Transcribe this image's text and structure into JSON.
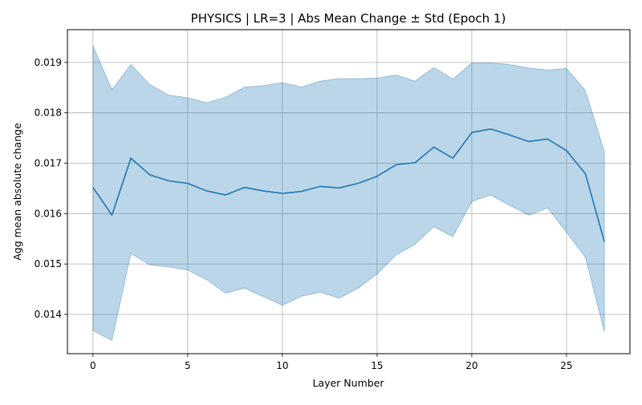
{
  "chart_data": {
    "type": "area",
    "title": "PHYSICS | LR=3 | Abs Mean Change ± Std (Epoch 1)",
    "xlabel": "Layer Number",
    "ylabel": "Agg mean absolute change",
    "xlim": [
      -1.35,
      28.35
    ],
    "ylim": [
      0.01322,
      0.01965
    ],
    "xticks": [
      0,
      5,
      10,
      15,
      20,
      25
    ],
    "yticks": [
      0.014,
      0.015,
      0.016,
      0.017,
      0.018,
      0.019
    ],
    "grid": true,
    "colors": {
      "line": "#1f77b4",
      "band": "#1f77b4",
      "grid": "#b0b0b0",
      "axis": "#000000"
    },
    "x": [
      0,
      1,
      2,
      3,
      4,
      5,
      6,
      7,
      8,
      9,
      10,
      11,
      12,
      13,
      14,
      15,
      16,
      17,
      18,
      19,
      20,
      21,
      22,
      23,
      24,
      25,
      26,
      27
    ],
    "series": [
      {
        "mean": [
          0.01652,
          0.01597,
          0.0171,
          0.01677,
          0.01665,
          0.0166,
          0.01645,
          0.01637,
          0.01652,
          0.01645,
          0.0164,
          0.01644,
          0.01654,
          0.01651,
          0.0166,
          0.01674,
          0.01697,
          0.01701,
          0.01732,
          0.0171,
          0.01761,
          0.01768,
          0.01756,
          0.01743,
          0.01748,
          0.01725,
          0.01679,
          0.01544
        ],
        "upper": [
          0.01933,
          0.01846,
          0.01896,
          0.01856,
          0.01835,
          0.0183,
          0.0182,
          0.01831,
          0.01851,
          0.01854,
          0.0186,
          0.01851,
          0.01863,
          0.01868,
          0.01868,
          0.01869,
          0.01875,
          0.01863,
          0.0189,
          0.01867,
          0.01899,
          0.01899,
          0.01896,
          0.01889,
          0.01885,
          0.01888,
          0.01844,
          0.01722
        ],
        "lower": [
          0.01368,
          0.01348,
          0.01521,
          0.01498,
          0.01494,
          0.01488,
          0.01469,
          0.01442,
          0.01452,
          0.01435,
          0.01418,
          0.01436,
          0.01444,
          0.01432,
          0.01452,
          0.0148,
          0.01518,
          0.01539,
          0.01574,
          0.01554,
          0.01624,
          0.01637,
          0.01616,
          0.01597,
          0.01611,
          0.01563,
          0.01513,
          0.01365
        ]
      }
    ]
  }
}
